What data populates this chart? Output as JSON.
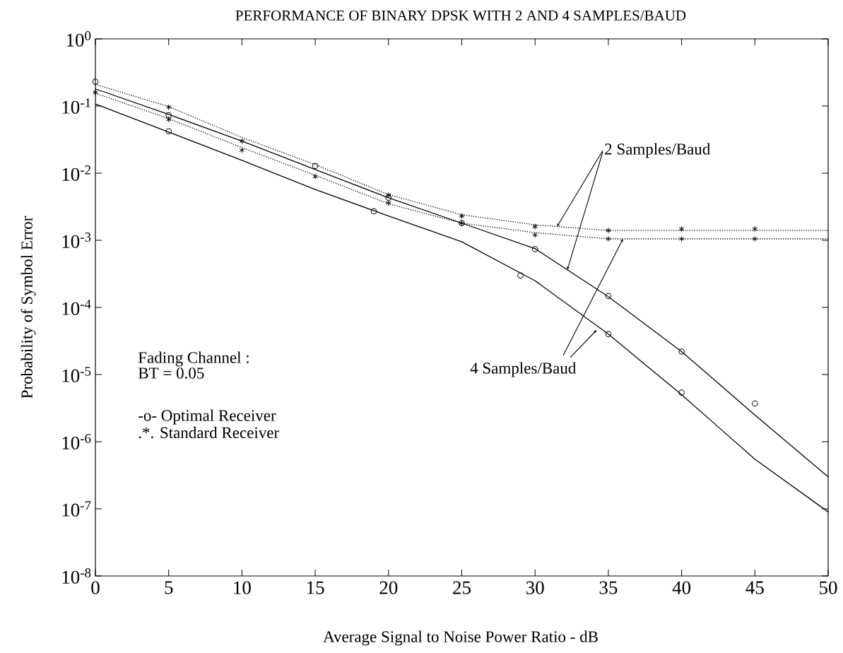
{
  "chart_data": {
    "type": "line",
    "title": "PERFORMANCE OF BINARY DPSK WITH 2 AND 4 SAMPLES/BAUD",
    "xlabel": "Average Signal to Noise Power Ratio - dB",
    "ylabel": "Probability of Symbol Error",
    "xlim": [
      0,
      50
    ],
    "ylim": [
      1e-08,
      1
    ],
    "log": true,
    "xticks": [
      0,
      5,
      10,
      15,
      20,
      25,
      30,
      35,
      40,
      45,
      50
    ],
    "yticks": [
      {
        "value": 1,
        "label": "10$^{0}$"
      },
      {
        "value": 0.1,
        "label": "10$^{-1}$"
      },
      {
        "value": 0.01,
        "label": "10$^{-2}$"
      },
      {
        "value": 0.001,
        "label": "10$^{-3}$"
      },
      {
        "value": 0.0001,
        "label": "10$^{-4}$"
      },
      {
        "value": 1e-05,
        "label": "10$^{-5}$"
      },
      {
        "value": 1e-06,
        "label": "10$^{-6}$"
      },
      {
        "value": 1e-07,
        "label": "10$^{-7}$"
      },
      {
        "value": 1e-08,
        "label": "10$^{-8}$"
      }
    ],
    "series": [
      {
        "line_style": "solid",
        "marker": "none",
        "color": "#000000",
        "x": [
          0,
          5,
          10,
          15,
          20,
          25,
          30,
          35,
          40,
          45,
          50
        ],
        "values": [
          0.18,
          0.075,
          0.03,
          0.0113,
          0.0043,
          0.0018,
          0.00075,
          0.000145,
          2.2e-05,
          2.5e-06,
          3e-07
        ]
      },
      {
        "line_style": "solid",
        "marker": "none",
        "color": "#000000",
        "x": [
          0,
          5,
          10,
          15,
          20,
          25,
          30,
          35,
          40,
          45,
          50
        ],
        "values": [
          0.107,
          0.041,
          0.0155,
          0.0057,
          0.0023,
          0.00095,
          0.00025,
          4e-05,
          5e-06,
          5.5e-07,
          9e-08
        ]
      },
      {
        "line_style": "dotted",
        "marker": "none",
        "color": "#000000",
        "x": [
          0,
          5,
          10,
          15,
          20,
          25,
          30,
          35,
          40,
          45,
          50
        ],
        "values": [
          0.21,
          0.098,
          0.034,
          0.0134,
          0.0048,
          0.0024,
          0.0017,
          0.0014,
          0.0014,
          0.0014,
          0.0014
        ]
      },
      {
        "line_style": "dotted",
        "marker": "none",
        "color": "#000000",
        "x": [
          0,
          5,
          10,
          15,
          20,
          25,
          30,
          35,
          40,
          45,
          50
        ],
        "values": [
          0.155,
          0.065,
          0.024,
          0.0093,
          0.0035,
          0.0018,
          0.0013,
          0.00105,
          0.00105,
          0.00105,
          0.00105
        ]
      },
      {
        "type": "scatter",
        "marker": "circle",
        "color": "#000000",
        "x": [
          0,
          5,
          15,
          20,
          25,
          30,
          35,
          40,
          45
        ],
        "values": [
          0.23,
          0.073,
          0.0128,
          0.0043,
          0.0018,
          0.00074,
          0.000148,
          2.2e-05,
          3.7e-06
        ]
      },
      {
        "type": "scatter",
        "marker": "circle",
        "color": "#000000",
        "x": [
          5,
          19,
          29,
          35,
          40
        ],
        "values": [
          0.042,
          0.0027,
          0.0003,
          4e-05,
          5.4e-06
        ]
      },
      {
        "type": "scatter",
        "marker": "cross",
        "color": "#000000",
        "x": [
          5,
          10,
          20,
          25,
          30,
          35,
          40,
          45
        ],
        "values": [
          0.096,
          0.03,
          0.0047,
          0.0023,
          0.0016,
          0.0014,
          0.00148,
          0.00148
        ]
      },
      {
        "type": "scatter",
        "marker": "cross",
        "color": "#000000",
        "x": [
          0,
          5,
          10,
          15,
          20,
          25,
          30,
          35,
          40,
          45
        ],
        "values": [
          0.16,
          0.063,
          0.022,
          0.0089,
          0.0036,
          0.0018,
          0.0012,
          0.00105,
          0.00105,
          0.00105
        ]
      }
    ],
    "annotations": [
      {
        "text": "2 Samples/Baud",
        "x": 31.5,
        "y": 0.0016
      },
      {
        "text": "4 Samples/Baud",
        "x": 34.2,
        "y": 4.6e-05
      },
      "Fading Channel     :",
      "BT = 0.05",
      "-o- Optimal Receiver",
      ".*. Standard Receiver"
    ]
  }
}
